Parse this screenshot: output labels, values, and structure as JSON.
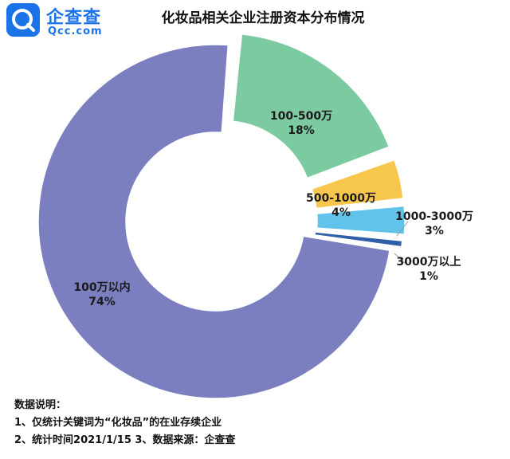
{
  "header": {
    "logo_name": "企查查",
    "logo_sub": "Qcc.com",
    "title": "化妆品相关企业注册资本分布情况"
  },
  "chart_data": {
    "type": "pie",
    "title": "化妆品相关企业注册资本分布情况",
    "donut": true,
    "slices": [
      {
        "label": "100万以内",
        "value": 74,
        "value_label": "74%",
        "color": "#7b7fbf"
      },
      {
        "label": "100-500万",
        "value": 18,
        "value_label": "18%",
        "color": "#7ccaa0"
      },
      {
        "label": "500-1000万",
        "value": 4,
        "value_label": "4%",
        "color": "#f7c64c"
      },
      {
        "label": "1000-3000万",
        "value": 3,
        "value_label": "3%",
        "color": "#5fc3ea"
      },
      {
        "label": "3000万以上",
        "value": 1,
        "value_label": "1%",
        "color": "#2e5fa8"
      }
    ]
  },
  "notes": {
    "heading": "数据说明：",
    "line1": "1、仅统计关键词为“化妆品”的在业存续企业",
    "line2": "2、统计时间2021/1/15   3、数据来源：企查查"
  }
}
